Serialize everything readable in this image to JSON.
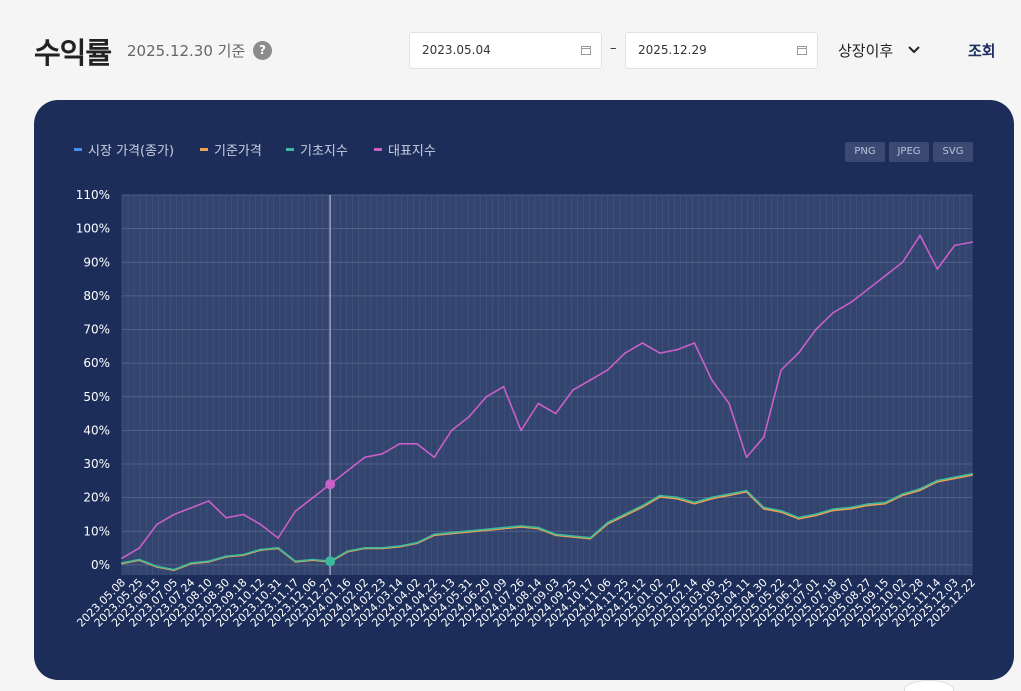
{
  "header": {
    "title": "수익률",
    "as_of": "2025.12.30 기준",
    "help_icon": "?",
    "start_date": "2023.05.04",
    "end_date": "2025.12.29",
    "date_separator": "–",
    "period_select": "상장이후",
    "search_label": "조회"
  },
  "exports": [
    "PNG",
    "JPEG",
    "SVG"
  ],
  "colors": {
    "market_price": "#4a8fe8",
    "nav": "#f0a050",
    "base_index": "#3cb89a",
    "benchmark": "#c860c8"
  },
  "chart_data": {
    "type": "line",
    "x_dates": [
      "2023.05.08",
      "2023.05.25",
      "2023.06.15",
      "2023.07.05",
      "2023.07.24",
      "2023.08.10",
      "2023.08.30",
      "2023.09.18",
      "2023.10.12",
      "2023.10.31",
      "2023.11.17",
      "2023.12.06",
      "2023.12.27",
      "2024.01.16",
      "2024.02.02",
      "2024.02.23",
      "2024.03.14",
      "2024.04.02",
      "2024.04.22",
      "2024.05.13",
      "2024.05.31",
      "2024.06.20",
      "2024.07.09",
      "2024.07.26",
      "2024.08.14",
      "2024.09.03",
      "2024.09.25",
      "2024.10.17",
      "2024.11.06",
      "2024.11.25",
      "2024.12.12",
      "2025.01.02",
      "2025.01.22",
      "2025.02.14",
      "2025.03.06",
      "2025.03.25",
      "2025.04.11",
      "2025.04.30",
      "2025.05.22",
      "2025.06.12",
      "2025.07.01",
      "2025.07.18",
      "2025.08.07",
      "2025.08.27",
      "2025.09.15",
      "2025.10.02",
      "2025.10.28",
      "2025.11.14",
      "2025.12.03",
      "2025.12.22"
    ],
    "y_ticks": [
      "0%",
      "10%",
      "20%",
      "30%",
      "40%",
      "50%",
      "60%",
      "70%",
      "80%",
      "90%",
      "100%",
      "110%"
    ],
    "ylim": [
      -3,
      110
    ],
    "ylabel_unit": "%",
    "grid": true,
    "legend_position": "top-left",
    "series": [
      {
        "name": "시장 가격(종가)",
        "values": [
          0.5,
          1.5,
          -0.5,
          -1.5,
          0.5,
          1.0,
          2.5,
          3.0,
          4.5,
          5.0,
          1.0,
          1.5,
          1.0,
          4.0,
          5.0,
          5.0,
          5.5,
          6.5,
          9.0,
          9.5,
          10.0,
          10.5,
          11.0,
          11.5,
          11.0,
          9.0,
          8.5,
          8.0,
          12.5,
          15.0,
          17.5,
          20.5,
          20.0,
          18.5,
          20.0,
          21.0,
          22.0,
          17.0,
          16.0,
          14.0,
          15.0,
          16.5,
          17.0,
          18.0,
          18.5,
          21.0,
          22.5,
          25.0,
          26.0,
          27.0
        ]
      },
      {
        "name": "기준가격",
        "values": [
          0.4,
          1.4,
          -0.6,
          -1.6,
          0.4,
          0.9,
          2.4,
          2.9,
          4.4,
          4.9,
          0.9,
          1.4,
          0.9,
          3.9,
          4.9,
          4.9,
          5.4,
          6.4,
          8.8,
          9.3,
          9.8,
          10.3,
          10.8,
          11.3,
          10.8,
          8.8,
          8.3,
          7.8,
          12.2,
          14.7,
          17.2,
          20.2,
          19.7,
          18.2,
          19.7,
          20.7,
          21.7,
          16.7,
          15.7,
          13.7,
          14.7,
          16.2,
          16.7,
          17.7,
          18.2,
          20.7,
          22.2,
          24.7,
          25.7,
          26.7
        ]
      },
      {
        "name": "기초지수",
        "values": [
          0.6,
          1.6,
          -0.4,
          -1.4,
          0.6,
          1.1,
          2.6,
          3.1,
          4.6,
          5.1,
          1.1,
          1.6,
          1.1,
          4.1,
          5.1,
          5.1,
          5.6,
          6.6,
          9.1,
          9.6,
          10.1,
          10.6,
          11.1,
          11.6,
          11.1,
          9.1,
          8.6,
          8.1,
          12.6,
          15.1,
          17.6,
          20.6,
          20.1,
          18.6,
          20.1,
          21.1,
          22.1,
          17.1,
          16.1,
          14.1,
          15.1,
          16.6,
          17.1,
          18.1,
          18.6,
          21.1,
          22.6,
          25.1,
          26.1,
          27.1
        ]
      },
      {
        "name": "대표지수",
        "values": [
          2,
          5,
          12,
          15,
          17,
          19,
          14,
          15,
          12,
          8,
          16,
          20,
          24,
          28,
          32,
          33,
          36,
          36,
          32,
          40,
          44,
          50,
          53,
          40,
          48,
          45,
          52,
          55,
          58,
          63,
          66,
          63,
          64,
          66,
          55,
          48,
          32,
          38,
          58,
          63,
          70,
          75,
          78,
          82,
          86,
          90,
          98,
          88,
          95,
          96
        ]
      }
    ],
    "hover": {
      "date": "2023.12.27"
    }
  }
}
